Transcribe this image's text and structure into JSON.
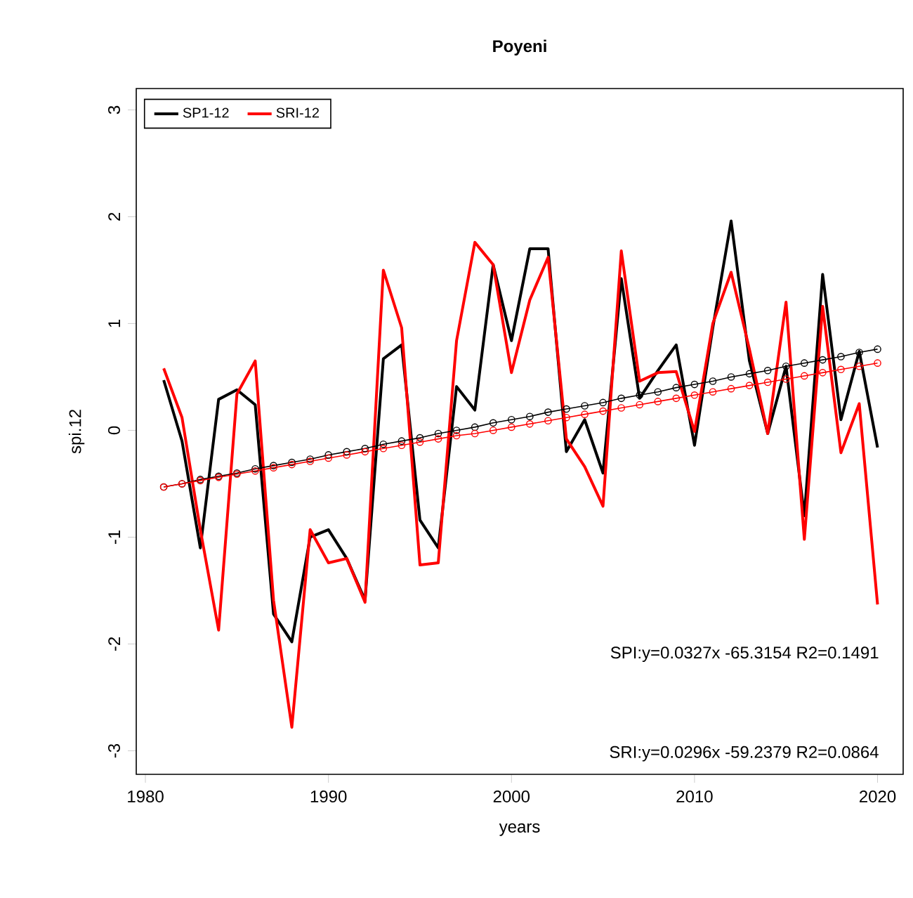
{
  "chart_data": {
    "type": "line",
    "title": "Poyeni",
    "xlabel": "years",
    "ylabel": "spi.12",
    "x": [
      1981,
      1982,
      1983,
      1984,
      1985,
      1986,
      1987,
      1988,
      1989,
      1990,
      1991,
      1992,
      1993,
      1994,
      1995,
      1996,
      1997,
      1998,
      1999,
      2000,
      2001,
      2002,
      2003,
      2004,
      2005,
      2006,
      2007,
      2008,
      2009,
      2010,
      2011,
      2012,
      2013,
      2014,
      2015,
      2016,
      2017,
      2018,
      2019,
      2020
    ],
    "series": [
      {
        "name": "SP1-12",
        "color": "#000000",
        "marker": "none",
        "values": [
          0.47,
          -0.1,
          -1.1,
          0.29,
          0.38,
          0.24,
          -1.72,
          -1.98,
          -1.0,
          -0.93,
          -1.2,
          -1.59,
          0.67,
          0.8,
          -0.84,
          -1.1,
          0.41,
          0.19,
          1.55,
          0.84,
          1.7,
          1.7,
          -0.2,
          0.1,
          -0.4,
          1.42,
          0.3,
          0.56,
          0.8,
          -0.14,
          0.96,
          1.96,
          0.65,
          -0.03,
          0.6,
          -0.8,
          1.46,
          0.1,
          0.74,
          -0.16
        ]
      },
      {
        "name": "SRI-12",
        "color": "#ff0000",
        "marker": "none",
        "values": [
          0.58,
          0.12,
          -0.93,
          -1.87,
          0.34,
          0.65,
          -1.59,
          -2.78,
          -0.93,
          -1.24,
          -1.2,
          -1.61,
          1.5,
          0.96,
          -1.26,
          -1.24,
          0.84,
          1.76,
          1.55,
          0.54,
          1.22,
          1.62,
          -0.08,
          -0.34,
          -0.71,
          1.68,
          0.46,
          0.54,
          0.55,
          -0.01,
          1.0,
          1.48,
          0.76,
          -0.03,
          1.2,
          -1.02,
          1.16,
          -0.21,
          0.25,
          -1.63
        ]
      },
      {
        "color": "#000000",
        "marker": "circle",
        "values": [
          -0.53,
          -0.5,
          -0.46,
          -0.43,
          -0.4,
          -0.36,
          -0.33,
          -0.3,
          -0.27,
          -0.23,
          -0.2,
          -0.17,
          -0.13,
          -0.1,
          -0.07,
          -0.03,
          0.0,
          0.03,
          0.07,
          0.1,
          0.13,
          0.17,
          0.2,
          0.23,
          0.26,
          0.3,
          0.33,
          0.36,
          0.4,
          0.43,
          0.46,
          0.5,
          0.53,
          0.56,
          0.6,
          0.63,
          0.66,
          0.69,
          0.73,
          0.76
        ]
      },
      {
        "color": "#ff0000",
        "marker": "circle",
        "values": [
          -0.53,
          -0.5,
          -0.47,
          -0.44,
          -0.41,
          -0.38,
          -0.35,
          -0.32,
          -0.29,
          -0.26,
          -0.23,
          -0.2,
          -0.17,
          -0.14,
          -0.11,
          -0.08,
          -0.05,
          -0.03,
          0.0,
          0.03,
          0.06,
          0.09,
          0.12,
          0.15,
          0.18,
          0.21,
          0.24,
          0.27,
          0.3,
          0.33,
          0.36,
          0.39,
          0.42,
          0.45,
          0.48,
          0.51,
          0.54,
          0.57,
          0.6,
          0.63
        ]
      }
    ],
    "xlim": [
      1979.5,
      2021.4
    ],
    "xticks": [
      1980,
      1990,
      2000,
      2010,
      2020
    ],
    "ylim": [
      -3.22,
      3.2
    ],
    "yticks": [
      -3,
      -2,
      -1,
      0,
      1,
      2,
      3
    ],
    "legend": "top left",
    "annotations": [
      "SPI:y=0.0327x -65.3154 R2=0.1491",
      "SRI:y=0.0296x -59.2379 R2=0.0864"
    ]
  }
}
